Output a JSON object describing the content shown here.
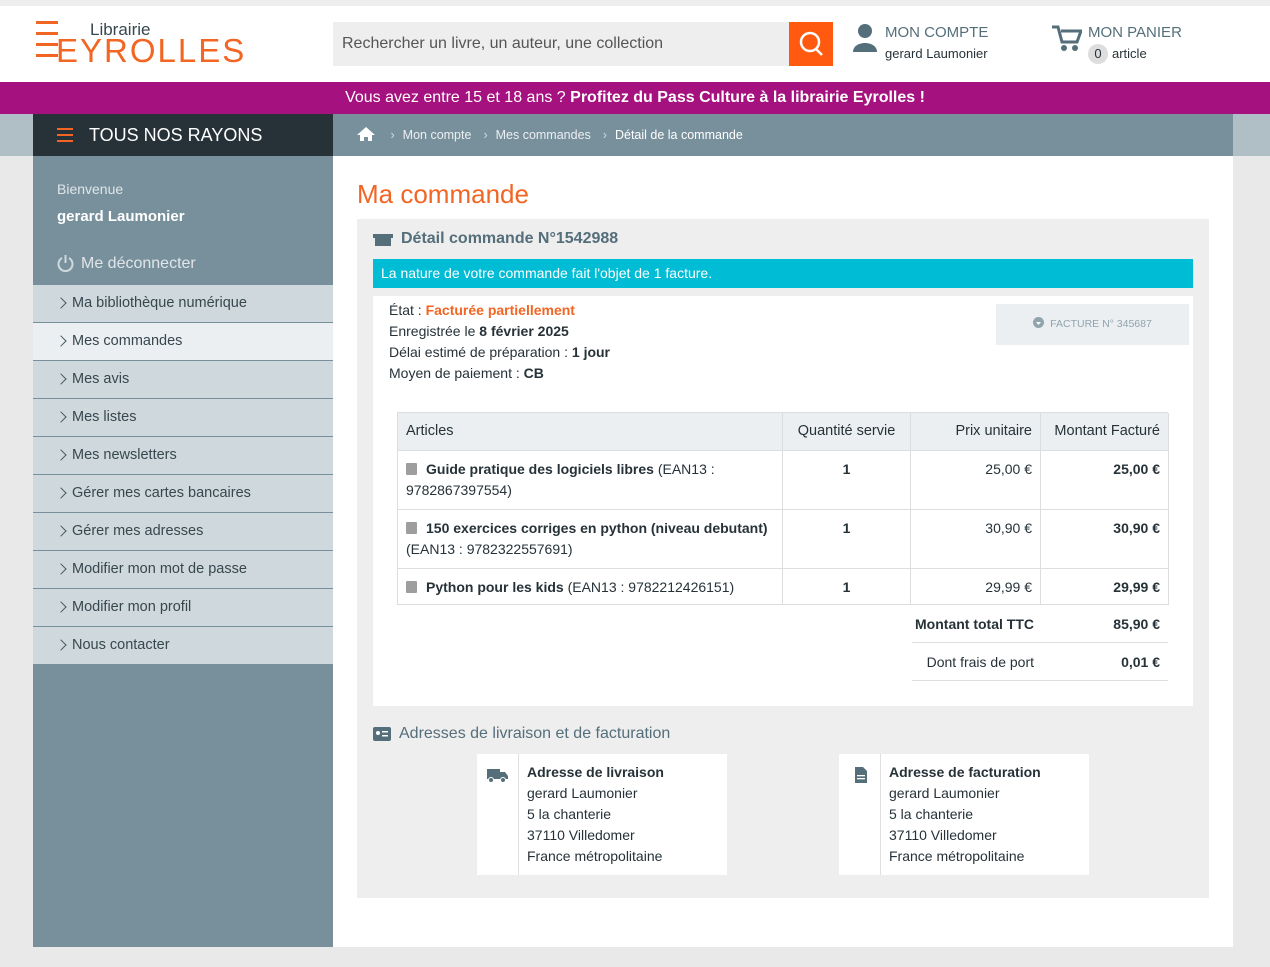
{
  "header": {
    "logo_small": "Librairie",
    "logo_big": "EYROLLES",
    "search_placeholder": "Rechercher un livre, un auteur, une collection",
    "account_label": "MON COMPTE",
    "account_user": "gerard Laumonier",
    "cart_label": "MON PANIER",
    "cart_count": 0,
    "cart_unit": "article"
  },
  "banner": {
    "text": "Vous avez entre 15 et 18 ans ?",
    "link": "Profitez du Pass Culture à la librairie Eyrolles !"
  },
  "menu_button": "TOUS NOS RAYONS",
  "breadcrumb": [
    "Mon compte",
    "Mes commandes",
    "Détail de la commande"
  ],
  "sidebar": {
    "welcome": "Bienvenue",
    "user": "gerard Laumonier",
    "logout": "Me déconnecter",
    "active_link": 1,
    "links": [
      "Ma bibliothèque numérique",
      "Mes commandes",
      "Mes avis",
      "Mes listes",
      "Mes newsletters",
      "Gérer mes cartes bancaires",
      "Gérer mes adresses",
      "Modifier mon mot de passe",
      "Modifier mon profil",
      "Nous contacter"
    ]
  },
  "page_title": "Ma commande",
  "order": {
    "heading": "Détail commande N°1542988",
    "notice": "La nature de votre commande fait l'objet de 1 facture.",
    "status": [
      {
        "label": "État :",
        "value": "Facturée partiellement"
      },
      {
        "label": "Enregistrée le",
        "value": "8 février 2025"
      },
      {
        "label": "Délai estimé de préparation :",
        "value": "1 jour"
      },
      {
        "label": "Moyen de paiement :",
        "value": "CB"
      }
    ],
    "invoice_button": "FACTURE N° 345687",
    "table": {
      "headers": [
        "Articles",
        "Quantité servie",
        "Prix unitaire",
        "Montant Facturé"
      ],
      "rows": [
        {
          "title": "Guide pratique des logiciels libres",
          "ean": "(EAN13 : 9782867397554)",
          "qty": 1,
          "unit_price": "25,00 €",
          "amount": "25,00 €"
        },
        {
          "title": "150 exercices corriges en python (niveau debutant)",
          "ean": "(EAN13 : 9782322557691)",
          "qty": 1,
          "unit_price": "30,90 €",
          "amount": "30,90 €"
        },
        {
          "title": "Python pour les kids",
          "ean": "(EAN13 : 9782212426151)",
          "qty": 1,
          "unit_price": "29,99 €",
          "amount": "29,99 €"
        }
      ]
    },
    "totals": [
      {
        "label": "Montant total TTC",
        "value": "85,90 €"
      },
      {
        "label": "Dont frais de port",
        "value": "0,01 €"
      }
    ]
  },
  "addresses": {
    "heading": "Adresses de livraison et de facturation",
    "cards": [
      {
        "title": "Adresse de livraison",
        "lines": [
          "gerard Laumonier",
          "5 la chanterie",
          "37110 Villedomer",
          "France métropolitaine"
        ]
      },
      {
        "title": "Adresse de facturation",
        "lines": [
          "gerard Laumonier",
          "5 la chanterie",
          "37110 Villedomer",
          "France métropolitaine"
        ]
      }
    ]
  }
}
